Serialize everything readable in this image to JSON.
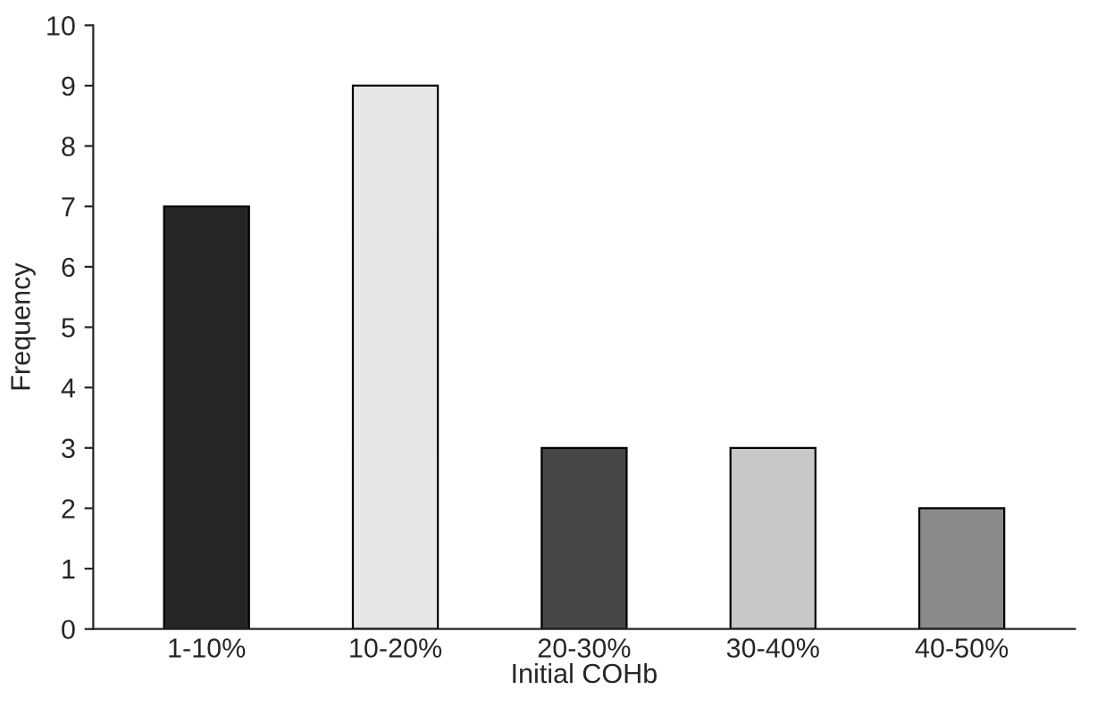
{
  "chart_data": {
    "type": "bar",
    "xlabel": "Initial COHb",
    "ylabel": "Frequency",
    "categories": [
      "1-10%",
      "10-20%",
      "20-30%",
      "30-40%",
      "40-50%"
    ],
    "values": [
      7,
      9,
      3,
      3,
      2
    ],
    "colors": [
      "#262626",
      "#e6e6e6",
      "#474747",
      "#c8c8c8",
      "#8a8a8a"
    ],
    "ylim": [
      0,
      10
    ],
    "yticks": [
      0,
      1,
      2,
      3,
      4,
      5,
      6,
      7,
      8,
      9,
      10
    ],
    "grid": false,
    "legend": false
  }
}
